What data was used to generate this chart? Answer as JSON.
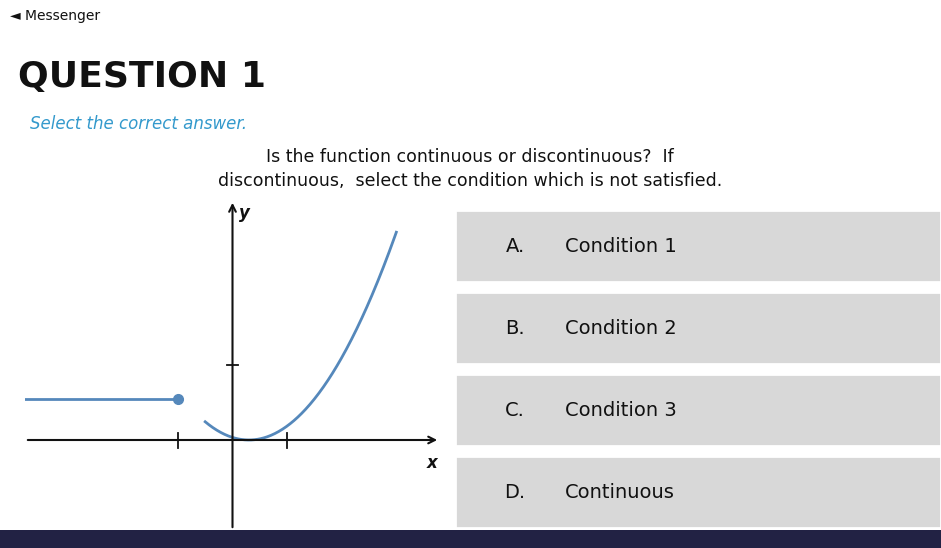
{
  "background_color": "#ffffff",
  "messenger_text": "◄ Messenger",
  "question_title": "QUESTION 1",
  "subtitle_color": "#3399cc",
  "subtitle_text": "Select the correct answer.",
  "body_text_line1": "Is the function continuous or discontinuous?  If",
  "body_text_line2": "discontinuous,  select the condition which is not satisfied.",
  "options": [
    {
      "label": "A.",
      "text": "Condition 1"
    },
    {
      "label": "B.",
      "text": "Condition 2"
    },
    {
      "label": "C.",
      "text": "Condition 3"
    },
    {
      "label": "D.",
      "text": "Continuous"
    }
  ],
  "option_bg_color": "#d8d8d8",
  "option_text_color": "#111111",
  "graph_curve_color": "#5588bb",
  "graph_dot_color": "#5588bb",
  "bottom_bar_color": "#222244",
  "axis_color": "#111111",
  "messenger_color": "#111111"
}
